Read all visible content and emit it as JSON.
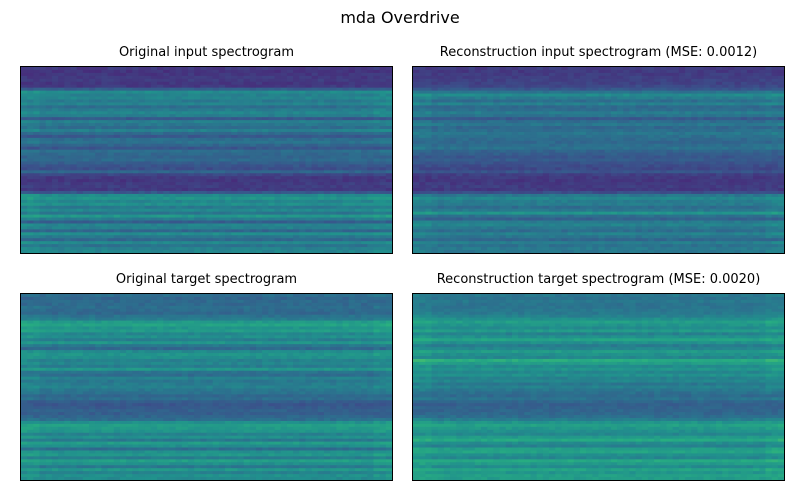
{
  "figure": {
    "title": "mda Overdrive"
  },
  "chart_data": [
    {
      "type": "heatmap",
      "title": "Original input spectrogram",
      "colormap": "viridis",
      "axes_ticks": false,
      "rows_top_to_bottom": [
        0.17,
        0.15,
        0.16,
        0.17,
        0.18,
        0.16,
        0.17,
        0.3,
        0.48,
        0.44,
        0.46,
        0.41,
        0.45,
        0.36,
        0.42,
        0.46,
        0.43,
        0.28,
        0.43,
        0.4,
        0.36,
        0.44,
        0.35,
        0.28,
        0.36,
        0.38,
        0.33,
        0.27,
        0.36,
        0.34,
        0.33,
        0.35,
        0.3,
        0.27,
        0.24,
        0.33,
        0.21,
        0.17,
        0.16,
        0.18,
        0.18,
        0.17,
        0.27,
        0.48,
        0.52,
        0.46,
        0.5,
        0.41,
        0.47,
        0.39,
        0.53,
        0.42,
        0.3,
        0.45,
        0.44,
        0.33,
        0.49,
        0.4,
        0.34,
        0.47,
        0.38,
        0.44,
        0.46
      ]
    },
    {
      "type": "heatmap",
      "title": "Reconstruction input spectrogram (MSE: 0.0012)",
      "colormap": "viridis",
      "axes_ticks": false,
      "rows_top_to_bottom": [
        0.18,
        0.17,
        0.18,
        0.19,
        0.2,
        0.2,
        0.22,
        0.27,
        0.38,
        0.48,
        0.42,
        0.36,
        0.44,
        0.35,
        0.36,
        0.42,
        0.38,
        0.28,
        0.36,
        0.4,
        0.34,
        0.36,
        0.4,
        0.37,
        0.35,
        0.34,
        0.36,
        0.38,
        0.32,
        0.3,
        0.27,
        0.29,
        0.26,
        0.24,
        0.22,
        0.26,
        0.19,
        0.17,
        0.16,
        0.17,
        0.18,
        0.17,
        0.24,
        0.4,
        0.46,
        0.42,
        0.42,
        0.36,
        0.4,
        0.52,
        0.37,
        0.31,
        0.42,
        0.45,
        0.4,
        0.36,
        0.44,
        0.39,
        0.34,
        0.43,
        0.38,
        0.41,
        0.4
      ]
    },
    {
      "type": "heatmap",
      "title": "Original target spectrogram",
      "colormap": "viridis",
      "axes_ticks": false,
      "rows_top_to_bottom": [
        0.36,
        0.33,
        0.35,
        0.34,
        0.36,
        0.35,
        0.34,
        0.38,
        0.42,
        0.54,
        0.58,
        0.52,
        0.55,
        0.46,
        0.5,
        0.43,
        0.52,
        0.4,
        0.34,
        0.48,
        0.52,
        0.5,
        0.44,
        0.46,
        0.42,
        0.53,
        0.38,
        0.36,
        0.44,
        0.4,
        0.42,
        0.44,
        0.4,
        0.38,
        0.34,
        0.36,
        0.3,
        0.27,
        0.29,
        0.31,
        0.3,
        0.33,
        0.36,
        0.5,
        0.56,
        0.54,
        0.52,
        0.44,
        0.5,
        0.4,
        0.55,
        0.49,
        0.36,
        0.5,
        0.53,
        0.42,
        0.56,
        0.5,
        0.4,
        0.53,
        0.44,
        0.5,
        0.48
      ]
    },
    {
      "type": "heatmap",
      "title": "Reconstruction target spectrogram (MSE: 0.0020)",
      "colormap": "viridis",
      "axes_ticks": false,
      "rows_top_to_bottom": [
        0.4,
        0.38,
        0.4,
        0.38,
        0.39,
        0.4,
        0.41,
        0.44,
        0.5,
        0.56,
        0.52,
        0.48,
        0.54,
        0.44,
        0.5,
        0.58,
        0.5,
        0.42,
        0.46,
        0.55,
        0.5,
        0.46,
        0.62,
        0.55,
        0.48,
        0.52,
        0.46,
        0.5,
        0.44,
        0.46,
        0.4,
        0.44,
        0.4,
        0.37,
        0.35,
        0.38,
        0.33,
        0.31,
        0.32,
        0.33,
        0.34,
        0.36,
        0.42,
        0.52,
        0.57,
        0.53,
        0.5,
        0.46,
        0.54,
        0.6,
        0.48,
        0.44,
        0.56,
        0.58,
        0.5,
        0.46,
        0.6,
        0.54,
        0.48,
        0.58,
        0.52,
        0.56,
        0.55
      ]
    }
  ]
}
